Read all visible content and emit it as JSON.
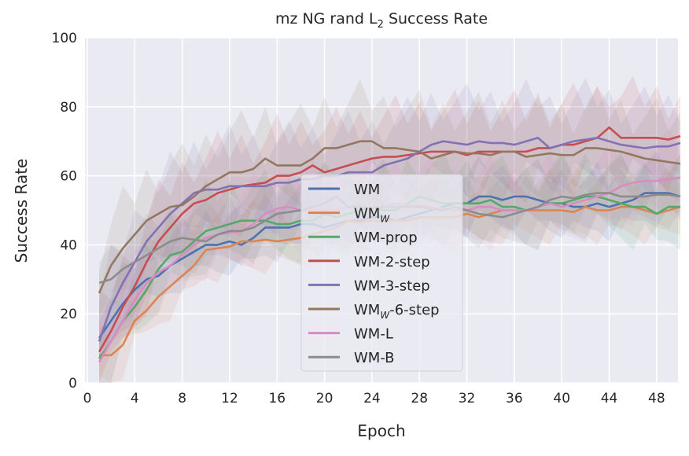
{
  "chart_data": {
    "type": "line",
    "title": "mz NG rand L",
    "title_subscript": "2",
    "title_suffix": " Success Rate",
    "xlabel": "Epoch",
    "ylabel": "Success Rate",
    "xlim": [
      0,
      50
    ],
    "ylim": [
      0,
      100
    ],
    "xticks": [
      0,
      4,
      8,
      12,
      16,
      20,
      24,
      28,
      32,
      36,
      40,
      44,
      48
    ],
    "yticks": [
      0,
      20,
      40,
      60,
      80,
      100
    ],
    "grid": true,
    "legend_position": "center",
    "background": "#eaeaf2",
    "x": [
      1,
      2,
      3,
      4,
      5,
      6,
      7,
      8,
      9,
      10,
      11,
      12,
      13,
      14,
      15,
      16,
      17,
      18,
      19,
      20,
      21,
      22,
      23,
      24,
      25,
      26,
      27,
      28,
      29,
      30,
      31,
      32,
      33,
      34,
      35,
      36,
      37,
      38,
      39,
      40,
      41,
      42,
      43,
      44,
      45,
      46,
      47,
      48,
      49,
      50
    ],
    "series": [
      {
        "name": "WM",
        "name_sub": "",
        "name_suffix": "",
        "color": "#4c72b0",
        "ci": 4,
        "values": [
          13,
          18,
          23,
          27,
          30,
          31,
          34,
          36,
          38,
          40,
          40,
          41,
          40,
          42,
          45,
          45,
          45,
          46,
          46,
          45,
          46,
          47,
          47,
          48,
          48,
          47,
          48,
          49,
          50,
          51,
          52,
          52,
          54,
          54,
          53,
          54,
          54,
          53,
          52,
          52,
          51,
          51,
          52,
          51,
          52,
          53,
          55,
          55,
          55,
          54
        ]
      },
      {
        "name": "WM",
        "name_sub": "W",
        "name_suffix": "",
        "color": "#dd8452",
        "ci": 4,
        "values": [
          8,
          8,
          11,
          18,
          21,
          25,
          28,
          31,
          34,
          38.5,
          39,
          39.5,
          41,
          41,
          41.5,
          41,
          41.5,
          42,
          43,
          44,
          45,
          47,
          46.5,
          47,
          47,
          47,
          47,
          48,
          48,
          48,
          48,
          49,
          48,
          49,
          50,
          50,
          50,
          50,
          50,
          50,
          49.5,
          51,
          50,
          50,
          51,
          51,
          50,
          49,
          50,
          51
        ]
      },
      {
        "name": "WM-prop",
        "name_sub": "",
        "name_suffix": "",
        "color": "#55a868",
        "ci": 5,
        "values": [
          7,
          12,
          18,
          22,
          27,
          33,
          37,
          38,
          41,
          44,
          45,
          46,
          47,
          47,
          47,
          46,
          46,
          47,
          47,
          49,
          48,
          49,
          50,
          51,
          50,
          50,
          52,
          54,
          53,
          52,
          52,
          52,
          52,
          53,
          51,
          51,
          50,
          51,
          52,
          52,
          53,
          54,
          54,
          53,
          52,
          51,
          51,
          49,
          51,
          51
        ]
      },
      {
        "name": "WM-2-step",
        "name_sub": "",
        "name_suffix": "",
        "color": "#c44e52",
        "ci": 6,
        "values": [
          9,
          15,
          22,
          28,
          35,
          41,
          45,
          49,
          52,
          53,
          55,
          56,
          57,
          57.5,
          58,
          60,
          60,
          61,
          63,
          61,
          62,
          63,
          64,
          65,
          65.5,
          65.5,
          66,
          66.5,
          67,
          67,
          67,
          66,
          67,
          67,
          67,
          67,
          67,
          68,
          68,
          69,
          69,
          70,
          71,
          74,
          71,
          71,
          71,
          71,
          70.5,
          71.5
        ]
      },
      {
        "name": "WM-3-step",
        "name_sub": "",
        "name_suffix": "",
        "color": "#8172b3",
        "ci": 6,
        "values": [
          12,
          22,
          29,
          35,
          41,
          45,
          49,
          52,
          55,
          56,
          56,
          57,
          57,
          57,
          57,
          58,
          58,
          59,
          59,
          60,
          60,
          61,
          61,
          61,
          63,
          64,
          65,
          67,
          69,
          70,
          69.5,
          69,
          70,
          69.5,
          69.5,
          69,
          70,
          71,
          68,
          69,
          70,
          70.5,
          71,
          70,
          69,
          68.5,
          68,
          68.5,
          68.5,
          69.5
        ]
      },
      {
        "name": "WM",
        "name_sub": "W",
        "name_suffix": "-6-step",
        "color": "#937860",
        "ci": 6,
        "values": [
          26,
          34,
          39,
          43,
          47,
          49,
          51,
          51.5,
          54,
          57,
          59,
          61,
          61,
          62,
          65,
          63,
          63,
          63,
          65,
          68,
          68,
          69,
          70,
          70,
          68,
          68,
          67.5,
          67,
          65,
          66,
          67,
          66.5,
          66.5,
          66,
          67,
          67,
          65.5,
          66,
          66.5,
          66,
          66,
          68,
          68,
          67.5,
          67,
          66,
          65,
          64.5,
          64,
          63.5
        ]
      },
      {
        "name": "WM-L",
        "name_sub": "",
        "name_suffix": "",
        "color": "#da8bc3",
        "ci": 5,
        "values": [
          6,
          12,
          18,
          24,
          29,
          32,
          34,
          37,
          40,
          42,
          43,
          43.5,
          44,
          46,
          49,
          50.5,
          51,
          50,
          50,
          50,
          50,
          51,
          51,
          51,
          51,
          52,
          51.5,
          51.5,
          51,
          50.5,
          50,
          50,
          51,
          51,
          50,
          50,
          50,
          51,
          52,
          51,
          52,
          53,
          54,
          55,
          57,
          58,
          58.5,
          58.5,
          59,
          59.5
        ]
      },
      {
        "name": "WM-B",
        "name_sub": "",
        "name_suffix": "",
        "color": "#8c8c8c",
        "ci": 4,
        "values": [
          29,
          30,
          33,
          35,
          37,
          39,
          41,
          42,
          41.5,
          41,
          43,
          44,
          44,
          45,
          47,
          49,
          49.5,
          50,
          51,
          52,
          54,
          51,
          51,
          50.5,
          51,
          51,
          51,
          51,
          50.5,
          50,
          51,
          50,
          49,
          48.5,
          48,
          49,
          50,
          51,
          53,
          54,
          53.5,
          54.5,
          55,
          55,
          54,
          54,
          54,
          54.5,
          54.5,
          54
        ]
      }
    ]
  }
}
